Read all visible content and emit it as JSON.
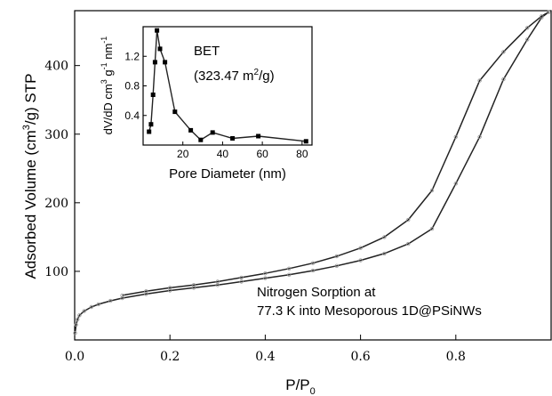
{
  "chart_data": [
    {
      "type": "line",
      "role": "main",
      "xlabel": "P/P",
      "xlabel_sub": "0",
      "ylabel": {
        "prefix": "Adsorbed Volume (cm",
        "sup": "3",
        "suffix": "/g) STP"
      },
      "xlim": [
        0,
        1.0
      ],
      "ylim": [
        0,
        480
      ],
      "xticks": [
        0.0,
        0.2,
        0.4,
        0.6,
        0.8
      ],
      "xtick_labels": [
        "0.0",
        "0.2",
        "0.4",
        "0.6",
        "0.8"
      ],
      "yticks": [
        100,
        200,
        300,
        400
      ],
      "ytick_labels": [
        "100",
        "200",
        "300",
        "400"
      ],
      "grid": false,
      "annotation": [
        "Nitrogen Sorption at",
        "77.3 K into  Mesoporous 1D@PSiNWs"
      ],
      "series": [
        {
          "values": [
            [
              0.001,
              10
            ],
            [
              0.003,
              22
            ],
            [
              0.006,
              30
            ],
            [
              0.01,
              36
            ],
            [
              0.02,
              42
            ],
            [
              0.035,
              48
            ],
            [
              0.05,
              52
            ],
            [
              0.075,
              57
            ],
            [
              0.1,
              61
            ],
            [
              0.15,
              67
            ],
            [
              0.2,
              72
            ],
            [
              0.25,
              76
            ],
            [
              0.3,
              80
            ],
            [
              0.35,
              85
            ],
            [
              0.4,
              90
            ],
            [
              0.45,
              95
            ],
            [
              0.5,
              101
            ],
            [
              0.55,
              108
            ],
            [
              0.6,
              116
            ],
            [
              0.65,
              126
            ],
            [
              0.7,
              140
            ],
            [
              0.75,
              162
            ],
            [
              0.8,
              228
            ],
            [
              0.85,
              296
            ],
            [
              0.9,
              380
            ],
            [
              0.95,
              438
            ],
            [
              0.98,
              470
            ],
            [
              0.995,
              478
            ]
          ]
        },
        {
          "values": [
            [
              0.995,
              478
            ],
            [
              0.98,
              472
            ],
            [
              0.95,
              455
            ],
            [
              0.9,
              420
            ],
            [
              0.85,
              378
            ],
            [
              0.8,
              296
            ],
            [
              0.75,
              218
            ],
            [
              0.7,
              175
            ],
            [
              0.65,
              150
            ],
            [
              0.6,
              134
            ],
            [
              0.55,
              122
            ],
            [
              0.5,
              112
            ],
            [
              0.45,
              104
            ],
            [
              0.4,
              97
            ],
            [
              0.35,
              91
            ],
            [
              0.3,
              85
            ],
            [
              0.25,
              80
            ],
            [
              0.2,
              76
            ],
            [
              0.15,
              71
            ],
            [
              0.1,
              65
            ]
          ]
        }
      ]
    },
    {
      "type": "line",
      "role": "inset",
      "xlabel": "Pore Diameter (nm)",
      "ylabel": {
        "part1": "dV/dD cm",
        "sup1": "3",
        "part2": " g",
        "sup2": "-1",
        "part3": " nm",
        "sup3": "-1"
      },
      "xlim": [
        0,
        85
      ],
      "ylim": [
        0,
        1.6
      ],
      "xticks": [
        20,
        40,
        60,
        80
      ],
      "xtick_labels": [
        "20",
        "40",
        "60",
        "80"
      ],
      "yticks": [
        0.4,
        0.8,
        1.2
      ],
      "ytick_labels": [
        "0.4",
        "0.8",
        "1.2"
      ],
      "annotation": {
        "line1": "BET",
        "line2_prefix": "(323.47 m",
        "line2_sup": "2",
        "line2_suffix": "/g)"
      },
      "series": [
        {
          "marker": "square",
          "values": [
            [
              3,
              0.18
            ],
            [
              4,
              0.28
            ],
            [
              5,
              0.68
            ],
            [
              6,
              1.12
            ],
            [
              7,
              1.55
            ],
            [
              8.5,
              1.3
            ],
            [
              11,
              1.12
            ],
            [
              16,
              0.45
            ],
            [
              24,
              0.2
            ],
            [
              29,
              0.07
            ],
            [
              35,
              0.17
            ],
            [
              45,
              0.09
            ],
            [
              58,
              0.12
            ],
            [
              82,
              0.05
            ]
          ]
        }
      ]
    }
  ],
  "colors": {
    "axis": "#000000",
    "curve": "#222222",
    "marker_main": "#9a9a9a",
    "marker_inset": "#000000"
  }
}
